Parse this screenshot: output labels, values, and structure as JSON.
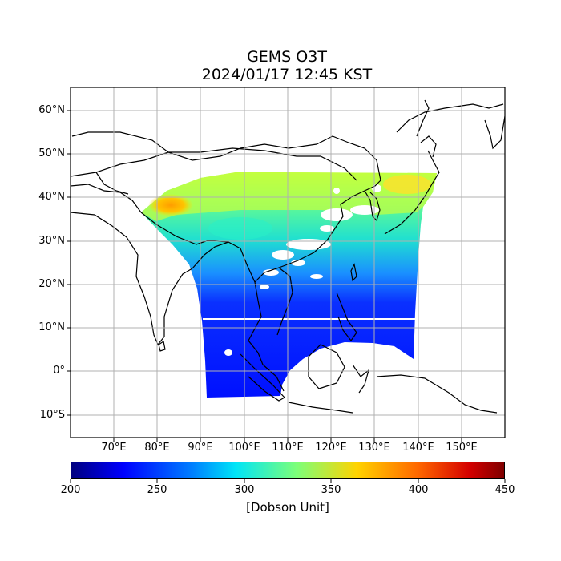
{
  "title": {
    "line1": "GEMS O3T",
    "line2": "2024/01/17 12:45 KST"
  },
  "latitude_labels": [
    "60°N",
    "50°N",
    "40°N",
    "30°N",
    "20°N",
    "10°N",
    "0°",
    "10°S"
  ],
  "longitude_labels": [
    "70°E",
    "80°E",
    "90°E",
    "100°E",
    "110°E",
    "120°E",
    "130°E",
    "140°E",
    "150°E"
  ],
  "colorbar": {
    "ticks": [
      "200",
      "250",
      "300",
      "350",
      "400",
      "450"
    ],
    "label": "[Dobson Unit]",
    "colors": [
      "#00007f",
      "#0000ff",
      "#0080ff",
      "#00e5f7",
      "#7cff79",
      "#ffd300",
      "#ff6800",
      "#d40000",
      "#7f0000"
    ]
  },
  "map": {
    "extent": {
      "lon": [
        60,
        160
      ],
      "lat": [
        -15,
        65
      ]
    },
    "grid": true
  }
}
